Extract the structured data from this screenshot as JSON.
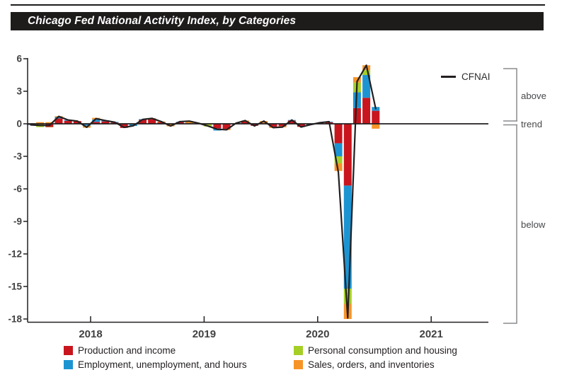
{
  "title": "Chicago Fed National Activity Index, by Categories",
  "cfnai_legend_label": "CFNAI",
  "annotations": {
    "above": "above",
    "trend": "trend",
    "below": "below"
  },
  "colors": {
    "production": "#c9151e",
    "employment": "#1d94d2",
    "consumption": "#a5cf27",
    "sales": "#f79428",
    "line": "#231f20",
    "axis": "#231f20",
    "bracket": "#8a8c8e",
    "tick_text": "#414042",
    "banner": "#1d1c1b"
  },
  "legend": {
    "items": [
      {
        "label": "Production and income",
        "color": "#c9151e"
      },
      {
        "label": "Personal consumption and housing",
        "color": "#a5cf27"
      },
      {
        "label": "Employment, unemployment, and hours",
        "color": "#1d94d2"
      },
      {
        "label": "Sales, orders, and inventories",
        "color": "#f79428"
      }
    ]
  },
  "chart_data": {
    "type": "bar",
    "bar_style": "stacked",
    "title": "Chicago Fed National Activity Index, by Categories",
    "xlabel": "",
    "ylabel": "",
    "ylim": [
      -18.3,
      6.1
    ],
    "yticks": [
      6,
      3,
      0,
      -3,
      -6,
      -9,
      -12,
      -15,
      -18
    ],
    "x_year_ticks": [
      "2018",
      "2019",
      "2020",
      "2021"
    ],
    "grid": false,
    "legend_position": "bottom",
    "categories": [
      "2017-06",
      "2017-07",
      "2017-08",
      "2017-09",
      "2017-10",
      "2017-11",
      "2017-12",
      "2018-01",
      "2018-02",
      "2018-03",
      "2018-04",
      "2018-05",
      "2018-06",
      "2018-07",
      "2018-08",
      "2018-09",
      "2018-10",
      "2018-11",
      "2018-12",
      "2019-01",
      "2019-02",
      "2019-03",
      "2019-04",
      "2019-05",
      "2019-06",
      "2019-07",
      "2019-08",
      "2019-09",
      "2019-10",
      "2019-11",
      "2019-12",
      "2020-01",
      "2020-02",
      "2020-03",
      "2020-04",
      "2020-05",
      "2020-06",
      "2020-07"
    ],
    "series": [
      {
        "name": "Production and income",
        "color": "#c9151e",
        "values": [
          -0.08,
          -0.05,
          -0.3,
          0.5,
          0.28,
          0.25,
          0,
          0.18,
          0.22,
          0.12,
          -0.38,
          -0.05,
          0.38,
          0.42,
          0.15,
          0,
          0.15,
          0.05,
          0.04,
          0,
          -0.42,
          -0.48,
          0.05,
          0.2,
          -0.18,
          0.05,
          -0.28,
          -0.22,
          0.3,
          -0.28,
          0,
          0.08,
          0.15,
          -1.8,
          -5.7,
          1.45,
          2.4,
          1.2
        ]
      },
      {
        "name": "Employment, unemployment, and hours",
        "color": "#1d94d2",
        "values": [
          -0.04,
          0,
          0,
          0.12,
          0.07,
          0,
          -0.18,
          0.22,
          0.1,
          0.05,
          0.03,
          -0.15,
          0.05,
          0,
          0,
          0,
          0.03,
          0,
          0,
          0,
          -0.2,
          0,
          0,
          0,
          0,
          0,
          0,
          0,
          0.05,
          0,
          -0.1,
          0,
          0.05,
          -1.2,
          -9.5,
          1.45,
          2.1,
          0.35
        ]
      },
      {
        "name": "Personal consumption and housing",
        "color": "#a5cf27",
        "values": [
          0,
          -0.25,
          -0.02,
          0,
          0,
          0,
          0,
          0,
          0,
          0,
          0,
          0,
          0,
          0,
          0,
          -0.05,
          0,
          0,
          0,
          -0.25,
          0,
          0,
          0,
          0,
          0,
          0,
          0,
          0,
          0,
          0,
          0,
          0,
          0,
          -0.65,
          -1.4,
          0.9,
          0.45,
          0
        ]
      },
      {
        "name": "Sales, orders, and inventories",
        "color": "#f79428",
        "values": [
          0.04,
          0.15,
          0.15,
          0.08,
          0,
          0,
          -0.18,
          0.15,
          0,
          0,
          0,
          0,
          0,
          0.1,
          0.06,
          -0.18,
          0,
          0.2,
          0,
          0,
          0,
          -0.1,
          0,
          0.1,
          0,
          0.2,
          -0.1,
          -0.1,
          0,
          0,
          0,
          0,
          0,
          -0.7,
          -1.4,
          0.5,
          0.45,
          -0.45
        ]
      }
    ],
    "overlay_line": {
      "name": "CFNAI",
      "values": [
        -0.1,
        -0.15,
        -0.15,
        0.68,
        0.35,
        0.25,
        -0.32,
        0.48,
        0.3,
        0.15,
        -0.33,
        -0.18,
        0.4,
        0.5,
        0.2,
        -0.2,
        0.2,
        0.25,
        0.05,
        -0.2,
        -0.5,
        -0.55,
        0.05,
        0.3,
        -0.2,
        0.25,
        -0.35,
        -0.3,
        0.35,
        -0.3,
        -0.08,
        0.1,
        0.2,
        -4.5,
        -17.9,
        3.9,
        5.4,
        1.4
      ]
    },
    "annotations": [
      "above",
      "trend",
      "below"
    ]
  }
}
